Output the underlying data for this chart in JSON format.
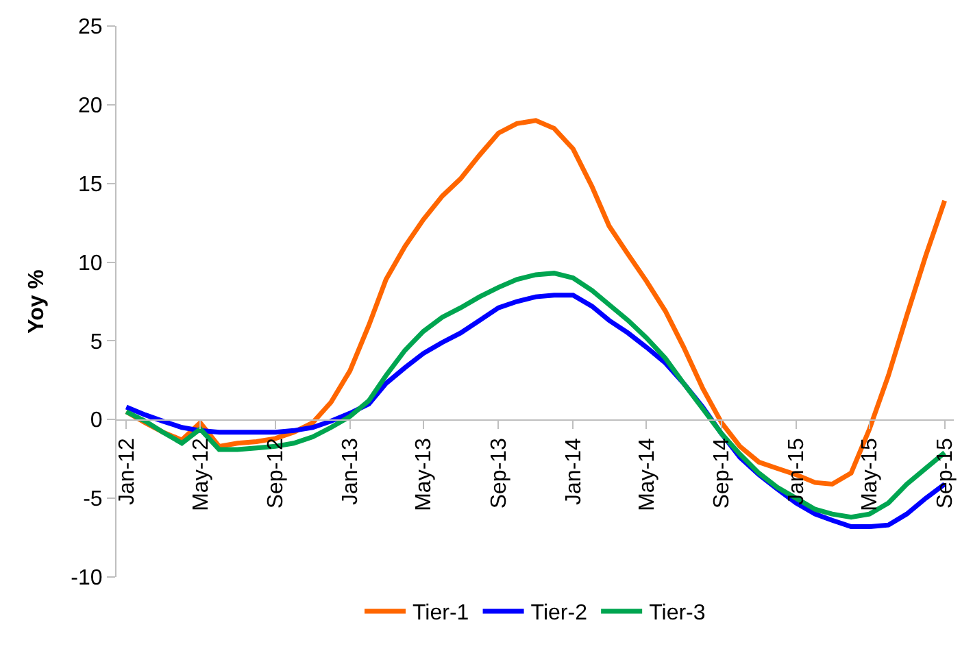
{
  "chart_data": {
    "type": "line",
    "ylabel": "Yoy %",
    "x": [
      "2012-01",
      "2012-02",
      "2012-03",
      "2012-04",
      "2012-05",
      "2012-06",
      "2012-07",
      "2012-08",
      "2012-09",
      "2012-10",
      "2012-11",
      "2012-12",
      "2013-01",
      "2013-02",
      "2013-03",
      "2013-04",
      "2013-05",
      "2013-06",
      "2013-07",
      "2013-08",
      "2013-09",
      "2013-10",
      "2013-11",
      "2013-12",
      "2014-01",
      "2014-02",
      "2014-03",
      "2014-04",
      "2014-05",
      "2014-06",
      "2014-07",
      "2014-08",
      "2014-09",
      "2014-10",
      "2014-11",
      "2014-12",
      "2015-01",
      "2015-02",
      "2015-03",
      "2015-04",
      "2015-05",
      "2015-06",
      "2015-07",
      "2015-08",
      "2015-09"
    ],
    "series": [
      {
        "name": "Tier-1",
        "color": "#ff6600",
        "values": [
          0.5,
          -0.2,
          -0.8,
          -1.3,
          -0.2,
          -1.7,
          -1.5,
          -1.4,
          -1.2,
          -0.8,
          -0.2,
          1.1,
          3.1,
          6.0,
          8.9,
          11.0,
          12.7,
          14.2,
          15.3,
          16.8,
          18.2,
          18.8,
          19.0,
          18.5,
          17.2,
          14.8,
          12.3,
          10.5,
          8.8,
          6.9,
          4.6,
          2.0,
          -0.2,
          -1.7,
          -2.7,
          -3.1,
          -3.5,
          -4.0,
          -4.1,
          -3.4,
          -0.6,
          2.8,
          6.6,
          10.4,
          13.9
        ]
      },
      {
        "name": "Tier-2",
        "color": "#0000ff",
        "values": [
          0.8,
          0.3,
          -0.1,
          -0.5,
          -0.7,
          -0.8,
          -0.8,
          -0.8,
          -0.8,
          -0.7,
          -0.5,
          -0.1,
          0.4,
          1.0,
          2.3,
          3.3,
          4.2,
          4.9,
          5.5,
          6.3,
          7.1,
          7.5,
          7.8,
          7.9,
          7.9,
          7.2,
          6.3,
          5.5,
          4.6,
          3.6,
          2.3,
          0.8,
          -0.9,
          -2.4,
          -3.5,
          -4.4,
          -5.3,
          -6.0,
          -6.4,
          -6.8,
          -6.8,
          -6.7,
          -6.0,
          -5.0,
          -4.1
        ]
      },
      {
        "name": "Tier-3",
        "color": "#00a550",
        "values": [
          0.5,
          -0.1,
          -0.8,
          -1.5,
          -0.6,
          -1.9,
          -1.9,
          -1.8,
          -1.7,
          -1.5,
          -1.1,
          -0.5,
          0.2,
          1.2,
          2.8,
          4.4,
          5.6,
          6.5,
          7.1,
          7.8,
          8.4,
          8.9,
          9.2,
          9.3,
          9.0,
          8.2,
          7.3,
          6.3,
          5.2,
          3.9,
          2.3,
          0.7,
          -0.9,
          -2.2,
          -3.4,
          -4.3,
          -5.0,
          -5.7,
          -6.0,
          -6.2,
          -6.0,
          -5.3,
          -4.1,
          -3.1,
          -2.1
        ]
      }
    ],
    "xlim": [
      "2011-12-16",
      "2015-09-16"
    ],
    "xticks": [
      {
        "value": "2012-01",
        "label": "Jan-12"
      },
      {
        "value": "2012-05",
        "label": "May-12"
      },
      {
        "value": "2012-09",
        "label": "Sep-12"
      },
      {
        "value": "2013-01",
        "label": "Jan-13"
      },
      {
        "value": "2013-05",
        "label": "May-13"
      },
      {
        "value": "2013-09",
        "label": "Sep-13"
      },
      {
        "value": "2014-01",
        "label": "Jan-14"
      },
      {
        "value": "2014-05",
        "label": "May-14"
      },
      {
        "value": "2014-09",
        "label": "Sep-14"
      },
      {
        "value": "2015-01",
        "label": "Jan-15"
      },
      {
        "value": "2015-05",
        "label": "May-15"
      },
      {
        "value": "2015-09",
        "label": "Sep-15"
      }
    ],
    "ylim": [
      -10,
      25
    ],
    "yticks": [
      -10,
      -5,
      0,
      5,
      10,
      15,
      20,
      25
    ],
    "legend": "bottom",
    "marker": "none",
    "line_style": "solid"
  }
}
